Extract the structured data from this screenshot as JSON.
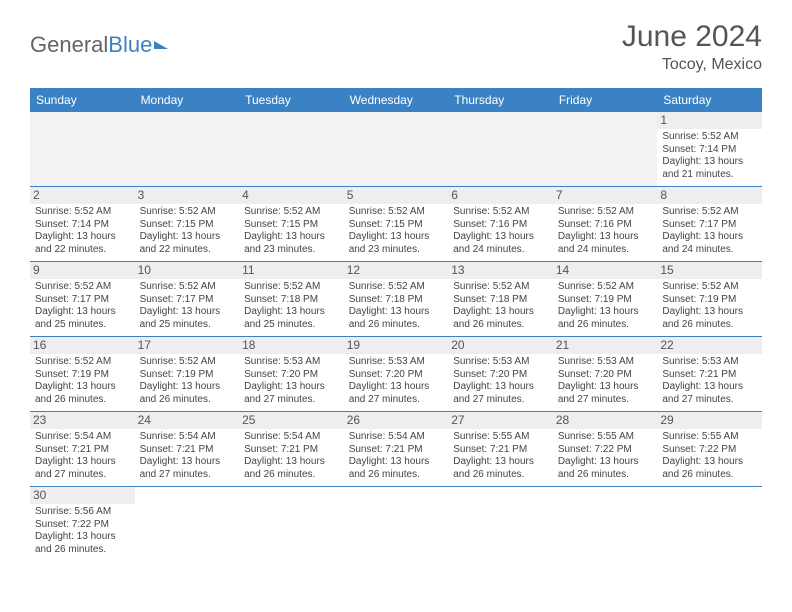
{
  "brand": {
    "part1": "General",
    "part2": "Blue"
  },
  "title": "June 2024",
  "location": "Tocoy, Mexico",
  "colors": {
    "header_bg": "#3b82c4",
    "text": "#444444",
    "title_text": "#555555",
    "daynum_bg": "#eeeeee",
    "row_border": "#3b82c4"
  },
  "day_headers": [
    "Sunday",
    "Monday",
    "Tuesday",
    "Wednesday",
    "Thursday",
    "Friday",
    "Saturday"
  ],
  "labels": {
    "sunrise": "Sunrise:",
    "sunset": "Sunset:",
    "daylight_prefix": "Daylight:"
  },
  "weeks": [
    [
      null,
      null,
      null,
      null,
      null,
      null,
      {
        "d": "1",
        "sunrise": "5:52 AM",
        "sunset": "7:14 PM",
        "daylight": "13 hours and 21 minutes."
      }
    ],
    [
      {
        "d": "2",
        "sunrise": "5:52 AM",
        "sunset": "7:14 PM",
        "daylight": "13 hours and 22 minutes."
      },
      {
        "d": "3",
        "sunrise": "5:52 AM",
        "sunset": "7:15 PM",
        "daylight": "13 hours and 22 minutes."
      },
      {
        "d": "4",
        "sunrise": "5:52 AM",
        "sunset": "7:15 PM",
        "daylight": "13 hours and 23 minutes."
      },
      {
        "d": "5",
        "sunrise": "5:52 AM",
        "sunset": "7:15 PM",
        "daylight": "13 hours and 23 minutes."
      },
      {
        "d": "6",
        "sunrise": "5:52 AM",
        "sunset": "7:16 PM",
        "daylight": "13 hours and 24 minutes."
      },
      {
        "d": "7",
        "sunrise": "5:52 AM",
        "sunset": "7:16 PM",
        "daylight": "13 hours and 24 minutes."
      },
      {
        "d": "8",
        "sunrise": "5:52 AM",
        "sunset": "7:17 PM",
        "daylight": "13 hours and 24 minutes."
      }
    ],
    [
      {
        "d": "9",
        "sunrise": "5:52 AM",
        "sunset": "7:17 PM",
        "daylight": "13 hours and 25 minutes."
      },
      {
        "d": "10",
        "sunrise": "5:52 AM",
        "sunset": "7:17 PM",
        "daylight": "13 hours and 25 minutes."
      },
      {
        "d": "11",
        "sunrise": "5:52 AM",
        "sunset": "7:18 PM",
        "daylight": "13 hours and 25 minutes."
      },
      {
        "d": "12",
        "sunrise": "5:52 AM",
        "sunset": "7:18 PM",
        "daylight": "13 hours and 26 minutes."
      },
      {
        "d": "13",
        "sunrise": "5:52 AM",
        "sunset": "7:18 PM",
        "daylight": "13 hours and 26 minutes."
      },
      {
        "d": "14",
        "sunrise": "5:52 AM",
        "sunset": "7:19 PM",
        "daylight": "13 hours and 26 minutes."
      },
      {
        "d": "15",
        "sunrise": "5:52 AM",
        "sunset": "7:19 PM",
        "daylight": "13 hours and 26 minutes."
      }
    ],
    [
      {
        "d": "16",
        "sunrise": "5:52 AM",
        "sunset": "7:19 PM",
        "daylight": "13 hours and 26 minutes."
      },
      {
        "d": "17",
        "sunrise": "5:52 AM",
        "sunset": "7:19 PM",
        "daylight": "13 hours and 26 minutes."
      },
      {
        "d": "18",
        "sunrise": "5:53 AM",
        "sunset": "7:20 PM",
        "daylight": "13 hours and 27 minutes."
      },
      {
        "d": "19",
        "sunrise": "5:53 AM",
        "sunset": "7:20 PM",
        "daylight": "13 hours and 27 minutes."
      },
      {
        "d": "20",
        "sunrise": "5:53 AM",
        "sunset": "7:20 PM",
        "daylight": "13 hours and 27 minutes."
      },
      {
        "d": "21",
        "sunrise": "5:53 AM",
        "sunset": "7:20 PM",
        "daylight": "13 hours and 27 minutes."
      },
      {
        "d": "22",
        "sunrise": "5:53 AM",
        "sunset": "7:21 PM",
        "daylight": "13 hours and 27 minutes."
      }
    ],
    [
      {
        "d": "23",
        "sunrise": "5:54 AM",
        "sunset": "7:21 PM",
        "daylight": "13 hours and 27 minutes."
      },
      {
        "d": "24",
        "sunrise": "5:54 AM",
        "sunset": "7:21 PM",
        "daylight": "13 hours and 27 minutes."
      },
      {
        "d": "25",
        "sunrise": "5:54 AM",
        "sunset": "7:21 PM",
        "daylight": "13 hours and 26 minutes."
      },
      {
        "d": "26",
        "sunrise": "5:54 AM",
        "sunset": "7:21 PM",
        "daylight": "13 hours and 26 minutes."
      },
      {
        "d": "27",
        "sunrise": "5:55 AM",
        "sunset": "7:21 PM",
        "daylight": "13 hours and 26 minutes."
      },
      {
        "d": "28",
        "sunrise": "5:55 AM",
        "sunset": "7:22 PM",
        "daylight": "13 hours and 26 minutes."
      },
      {
        "d": "29",
        "sunrise": "5:55 AM",
        "sunset": "7:22 PM",
        "daylight": "13 hours and 26 minutes."
      }
    ],
    [
      {
        "d": "30",
        "sunrise": "5:56 AM",
        "sunset": "7:22 PM",
        "daylight": "13 hours and 26 minutes."
      },
      null,
      null,
      null,
      null,
      null,
      null
    ]
  ]
}
